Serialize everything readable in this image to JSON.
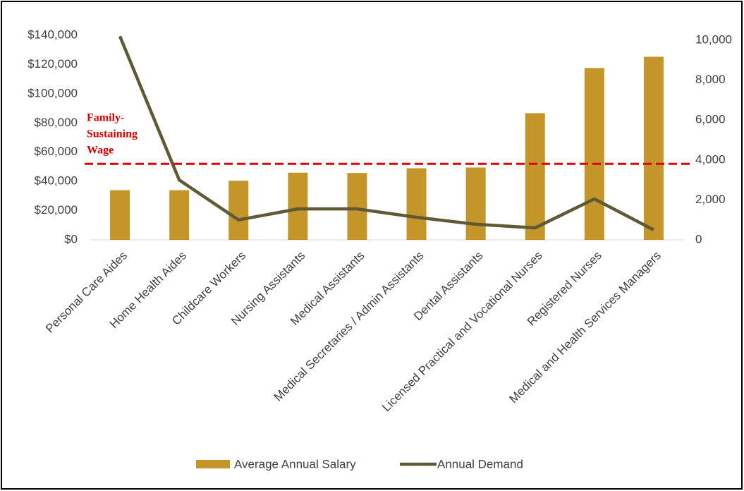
{
  "chart_data": {
    "type": "bar_line",
    "categories": [
      "Personal Care Aides",
      "Home Health Aides",
      "Childcare Workers",
      "Nursing Assistants",
      "Medical Assistants",
      "Medical Secretaries / Admin Assistants",
      "Dental Assistants",
      "Licensed Practical and Vocational Nurses",
      "Registered Nurses",
      "Medical and Health Services Managers"
    ],
    "series": [
      {
        "name": "Average Annual Salary",
        "type": "bar",
        "color": "#c4962a",
        "values": [
          34000,
          34000,
          40500,
          46000,
          45800,
          49000,
          49500,
          86700,
          117600,
          125300
        ]
      },
      {
        "name": "Annual Demand",
        "type": "line",
        "color": "#5f5a35",
        "axis": "y2",
        "values": [
          10200,
          3000,
          1000,
          1550,
          1550,
          1130,
          780,
          600,
          2050,
          500
        ]
      }
    ],
    "ylim": [
      0,
      140000
    ],
    "yticks": [
      {
        "value": 0,
        "label": "$0"
      },
      {
        "value": 20000,
        "label": "$20,000"
      },
      {
        "value": 40000,
        "label": "$40,000"
      },
      {
        "value": 60000,
        "label": "$60,000"
      },
      {
        "value": 80000,
        "label": "$80,000"
      },
      {
        "value": 100000,
        "label": "$100,000"
      },
      {
        "value": 120000,
        "label": "$120,000"
      },
      {
        "value": 140000,
        "label": "$140,000"
      }
    ],
    "y2lim": [
      0,
      10250
    ],
    "y2ticks": [
      0,
      {
        "value": 2000,
        "label": "2,000"
      },
      {
        "value": 4000,
        "label": "4,000"
      },
      {
        "value": 6000,
        "label": "6,000"
      },
      {
        "value": 8000,
        "label": "8,000"
      },
      {
        "value": 10000,
        "label": "10,000"
      }
    ],
    "reference_line": {
      "value": 52000,
      "color": "#e00000",
      "label_lines": [
        "Family-",
        "Sustaining",
        "Wage"
      ]
    },
    "grid": false,
    "legend": "bottom"
  }
}
